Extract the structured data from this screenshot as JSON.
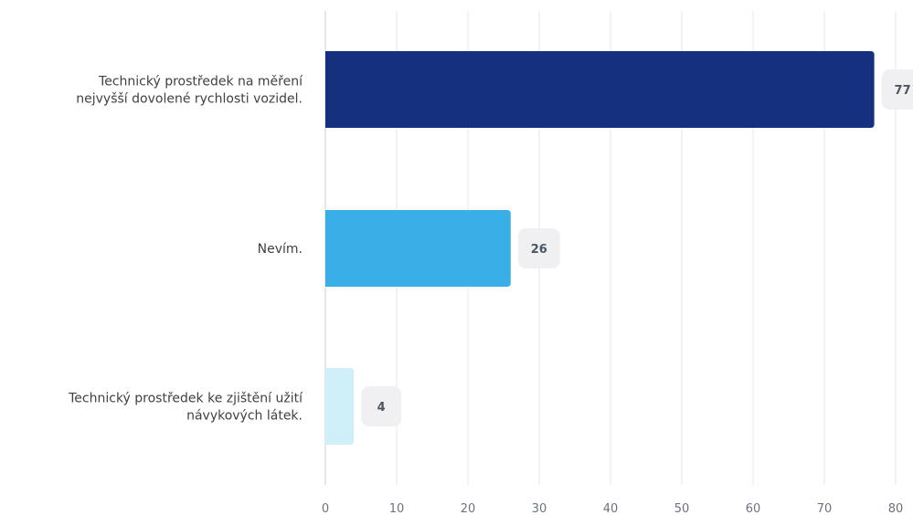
{
  "chart_data": {
    "type": "bar",
    "orientation": "horizontal",
    "categories": [
      [
        "Technický prostředek na měření",
        "nejvyšší dovolené rychlosti vozidel."
      ],
      [
        "Nevím."
      ],
      [
        "Technický prostředek ke zjištění užití",
        "návykových látek."
      ]
    ],
    "values": [
      77,
      26,
      4
    ],
    "value_labels": [
      "77",
      "26",
      "4"
    ],
    "bar_colors": [
      "#14307f",
      "#3aaee6",
      "#cff0f8"
    ],
    "xlim": [
      0,
      80
    ],
    "xticks": [
      0,
      10,
      20,
      30,
      40,
      50,
      60,
      70,
      80
    ],
    "xtick_labels": [
      "0",
      "10",
      "20",
      "30",
      "40",
      "50",
      "60",
      "70",
      "80"
    ],
    "grid": true,
    "title": "",
    "xlabel": "",
    "ylabel": ""
  }
}
